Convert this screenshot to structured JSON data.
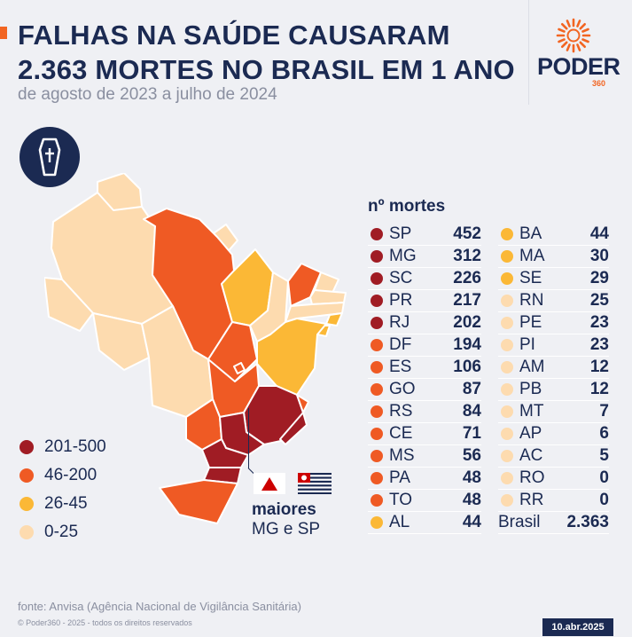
{
  "header": {
    "title_line1": "FALHAS NA SAÚDE CAUSARAM",
    "title_line2": "2.363 MORTES NO BRASIL EM 1 ANO",
    "subtitle": "de agosto de 2023 a julho de 2024"
  },
  "logo": {
    "word": "PODER",
    "number": "360"
  },
  "colors": {
    "tier1": "#a01c24",
    "tier2": "#ef5a24",
    "tier3": "#fbb836",
    "tier4": "#fddbaf",
    "navy": "#1b2a52",
    "accent": "#f26522"
  },
  "legend": {
    "items": [
      {
        "label": "201-500",
        "color": "#a01c24"
      },
      {
        "label": "46-200",
        "color": "#ef5a24"
      },
      {
        "label": "26-45",
        "color": "#fbb836"
      },
      {
        "label": "0-25",
        "color": "#fddbaf"
      }
    ]
  },
  "table": {
    "header": "nº mortes",
    "left": [
      {
        "state": "SP",
        "value": "452",
        "tier": 1
      },
      {
        "state": "MG",
        "value": "312",
        "tier": 1
      },
      {
        "state": "SC",
        "value": "226",
        "tier": 1
      },
      {
        "state": "PR",
        "value": "217",
        "tier": 1
      },
      {
        "state": "RJ",
        "value": "202",
        "tier": 1
      },
      {
        "state": "DF",
        "value": "194",
        "tier": 2
      },
      {
        "state": "ES",
        "value": "106",
        "tier": 2
      },
      {
        "state": "GO",
        "value": "87",
        "tier": 2
      },
      {
        "state": "RS",
        "value": "84",
        "tier": 2
      },
      {
        "state": "CE",
        "value": "71",
        "tier": 2
      },
      {
        "state": "MS",
        "value": "56",
        "tier": 2
      },
      {
        "state": "PA",
        "value": "48",
        "tier": 2
      },
      {
        "state": "TO",
        "value": "48",
        "tier": 2
      },
      {
        "state": "AL",
        "value": "44",
        "tier": 3
      }
    ],
    "right": [
      {
        "state": "BA",
        "value": "44",
        "tier": 3
      },
      {
        "state": "MA",
        "value": "30",
        "tier": 3
      },
      {
        "state": "SE",
        "value": "29",
        "tier": 3
      },
      {
        "state": "RN",
        "value": "25",
        "tier": 4
      },
      {
        "state": "PE",
        "value": "23",
        "tier": 4
      },
      {
        "state": "PI",
        "value": "23",
        "tier": 4
      },
      {
        "state": "AM",
        "value": "12",
        "tier": 4
      },
      {
        "state": "PB",
        "value": "12",
        "tier": 4
      },
      {
        "state": "MT",
        "value": "7",
        "tier": 4
      },
      {
        "state": "AP",
        "value": "6",
        "tier": 4
      },
      {
        "state": "AC",
        "value": "5",
        "tier": 4
      },
      {
        "state": "RO",
        "value": "0",
        "tier": 4
      },
      {
        "state": "RR",
        "value": "0",
        "tier": 4
      }
    ],
    "total": {
      "label": "Brasil",
      "value": "2.363"
    }
  },
  "callout": {
    "line1": "maiores",
    "line2": "MG e SP"
  },
  "footer": {
    "source": "fonte: Anvisa (Agência Nacional de Vigilância Sanitária)",
    "copyright": "© Poder360 - 2025 - todos os direitos reservados",
    "date": "10.abr.2025"
  },
  "icons": [
    "coffin-icon",
    "poder360-sun-logo",
    "minas-gerais-flag-icon",
    "sao-paulo-flag-icon"
  ]
}
